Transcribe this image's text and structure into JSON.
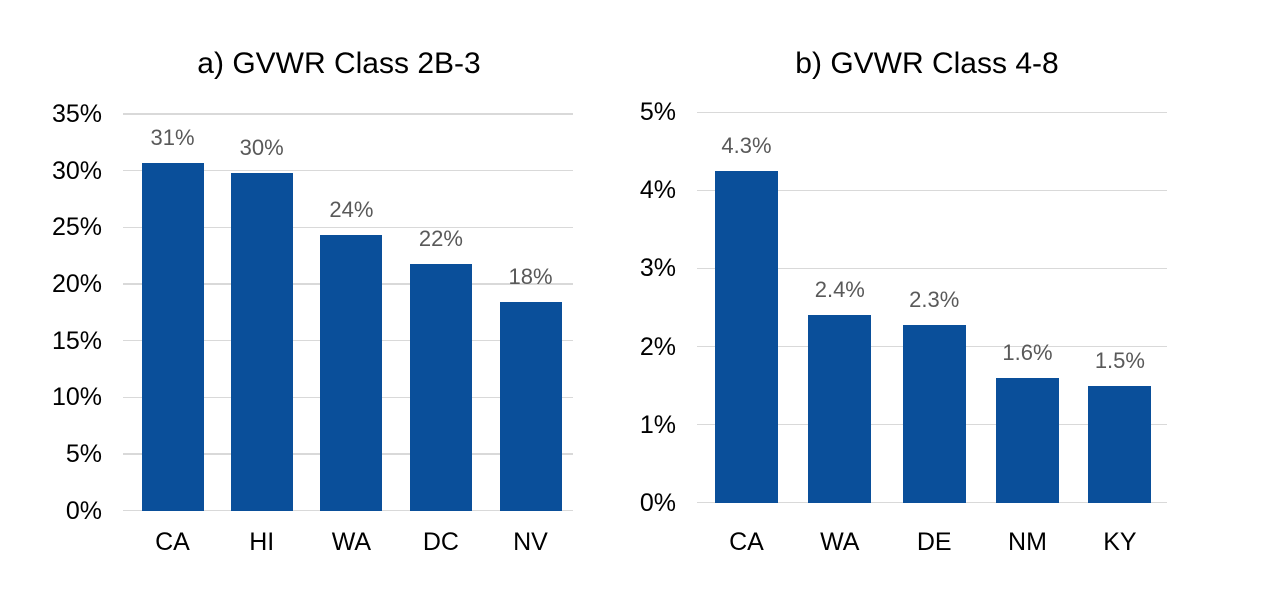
{
  "colors": {
    "bar": "#0a4f9a",
    "gridline": "#d9d9d9",
    "axis_line": "#d9d9d9",
    "data_label": "#595959",
    "tick_label": "#000000",
    "title": "#000000",
    "background": "#ffffff"
  },
  "chart_data": [
    {
      "type": "bar",
      "title": "a) GVWR Class 2B-3",
      "categories": [
        "CA",
        "HI",
        "WA",
        "DC",
        "NV"
      ],
      "values": [
        30.7,
        29.8,
        24.3,
        21.8,
        18.4
      ],
      "bar_labels": [
        "31%",
        "30%",
        "24%",
        "22%",
        "18%"
      ],
      "ylim": [
        0,
        35
      ],
      "ytick_step": 5,
      "ytick_labels": [
        "0%",
        "5%",
        "10%",
        "15%",
        "20%",
        "25%",
        "30%",
        "35%"
      ],
      "xlabel": "",
      "ylabel": "",
      "grid": true,
      "legend": "none"
    },
    {
      "type": "bar",
      "title": "b) GVWR Class 4-8",
      "categories": [
        "CA",
        "WA",
        "DE",
        "NM",
        "KY"
      ],
      "values": [
        4.25,
        2.4,
        2.28,
        1.6,
        1.5
      ],
      "bar_labels": [
        "4.3%",
        "2.4%",
        "2.3%",
        "1.6%",
        "1.5%"
      ],
      "ylim": [
        0,
        5
      ],
      "ytick_step": 1,
      "ytick_labels": [
        "0%",
        "1%",
        "2%",
        "3%",
        "4%",
        "5%"
      ],
      "xlabel": "",
      "ylabel": "",
      "grid": true,
      "legend": "none"
    }
  ]
}
